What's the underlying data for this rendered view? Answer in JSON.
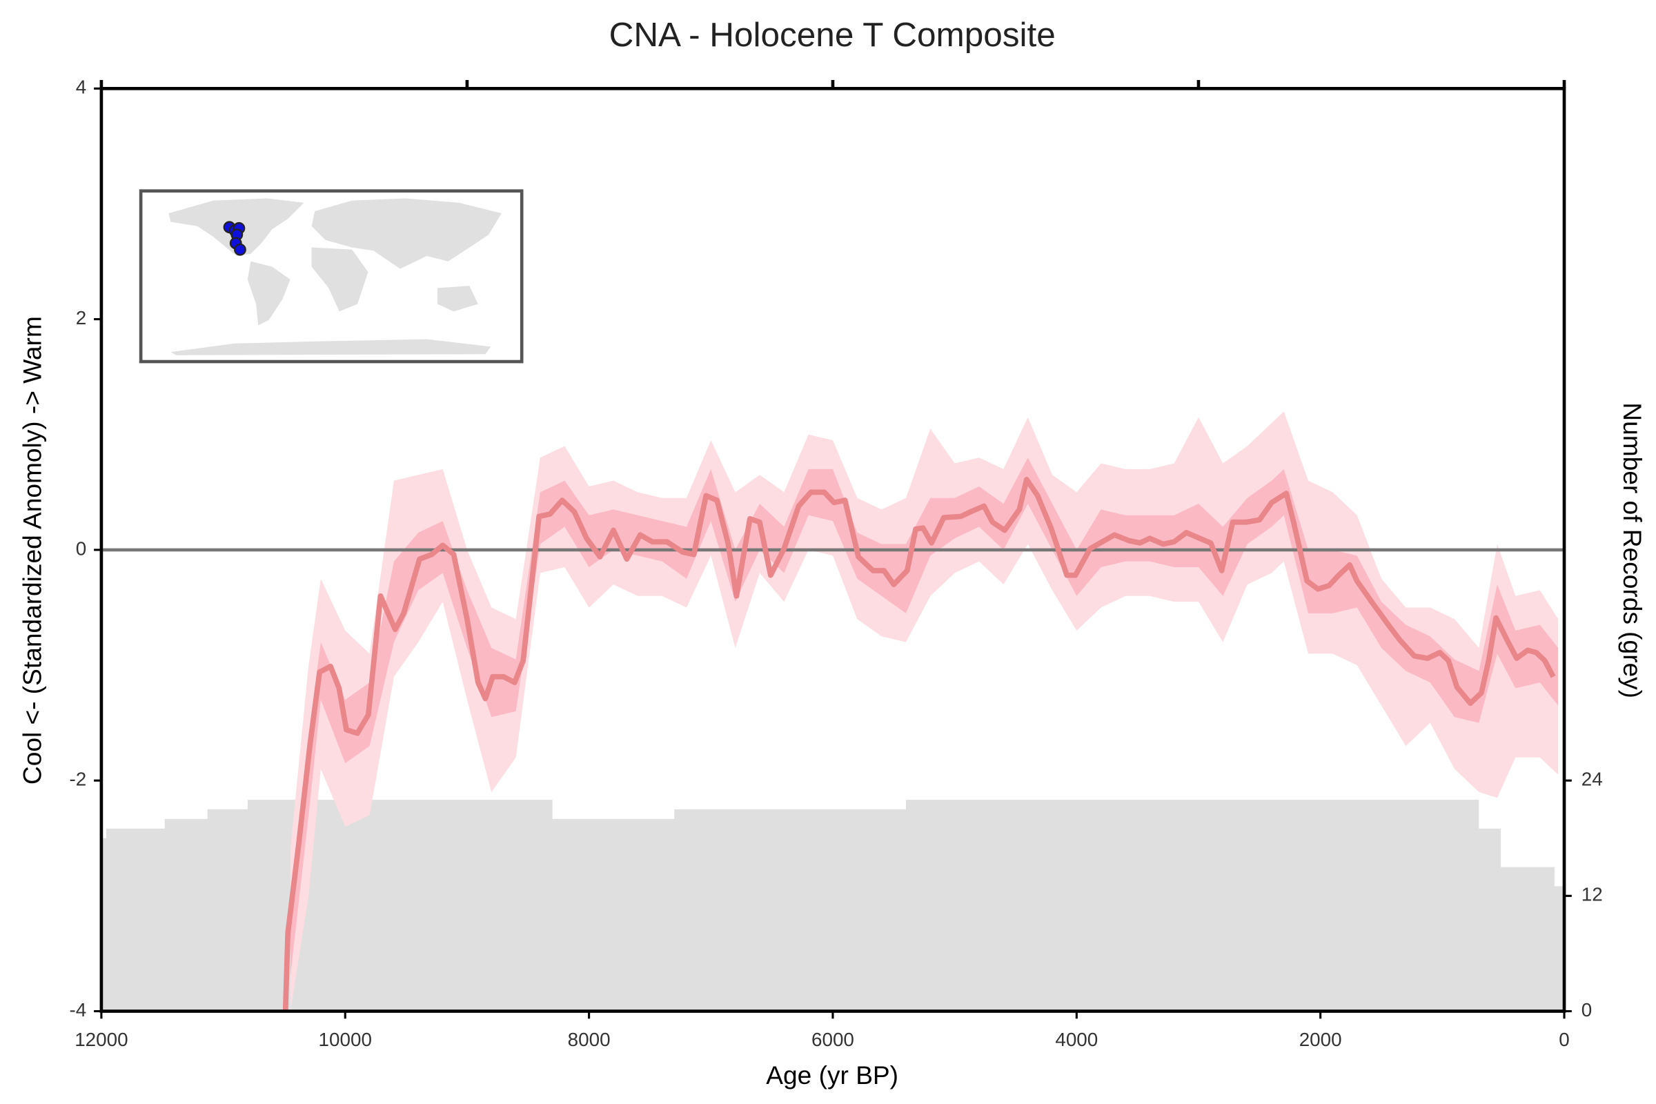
{
  "chart_data": {
    "type": "line",
    "title": "CNA - Holocene T Composite",
    "xlabel": "Age (yr BP)",
    "ylabel": "Cool <- (Standardized Anomoly) -> Warm",
    "y2label": "Number of Records (grey)",
    "xlim": [
      12000,
      0
    ],
    "xticks": [
      12000,
      10000,
      8000,
      6000,
      4000,
      2000,
      0
    ],
    "top_ticks": [
      12000,
      9000,
      6000,
      3000,
      0
    ],
    "ylim": [
      -4,
      4
    ],
    "yticks": [
      -4,
      -2,
      0,
      2,
      4
    ],
    "y2lim": [
      0,
      96
    ],
    "y2ticks": [
      0,
      12,
      24
    ],
    "hline": 0,
    "hline_color": "#777777",
    "records": {
      "color": "#dfdfdf",
      "axis": "y2",
      "x": [
        12000,
        11960,
        11480,
        11130,
        10800,
        8300,
        7300,
        5400,
        700,
        520,
        80
      ],
      "values": [
        18,
        19,
        20,
        21,
        22,
        20,
        21,
        22,
        19,
        15,
        13
      ]
    },
    "bands": [
      {
        "color": "#fddde2",
        "x": [
          10450,
          10300,
          10200,
          10000,
          9800,
          9600,
          9400,
          9200,
          9000,
          8800,
          8600,
          8400,
          8200,
          8000,
          7800,
          7600,
          7400,
          7200,
          7000,
          6800,
          6600,
          6400,
          6200,
          6000,
          5800,
          5600,
          5400,
          5200,
          5000,
          4800,
          4600,
          4400,
          4200,
          4000,
          3800,
          3600,
          3400,
          3200,
          3000,
          2800,
          2600,
          2400,
          2300,
          2100,
          1900,
          1700,
          1500,
          1300,
          1100,
          900,
          700,
          550,
          400,
          200,
          50
        ],
        "upper": [
          -2.6,
          -1.0,
          -0.25,
          -0.7,
          -0.9,
          0.6,
          0.65,
          0.7,
          0.0,
          -0.5,
          -0.6,
          0.8,
          0.9,
          0.55,
          0.6,
          0.5,
          0.45,
          0.45,
          0.95,
          0.5,
          0.65,
          0.5,
          1.0,
          0.95,
          0.45,
          0.35,
          0.45,
          1.05,
          0.75,
          0.8,
          0.7,
          1.15,
          0.65,
          0.5,
          0.75,
          0.7,
          0.7,
          0.75,
          1.15,
          0.75,
          0.9,
          1.1,
          1.2,
          0.6,
          0.5,
          0.3,
          -0.25,
          -0.5,
          -0.5,
          -0.6,
          -0.85,
          0.05,
          -0.4,
          -0.35,
          -0.6
        ],
        "lower": [
          -4,
          -3.0,
          -1.9,
          -2.4,
          -2.3,
          -1.1,
          -0.8,
          -0.45,
          -1.3,
          -2.1,
          -1.8,
          -0.2,
          -0.15,
          -0.5,
          -0.3,
          -0.4,
          -0.4,
          -0.5,
          -0.05,
          -0.85,
          -0.2,
          -0.45,
          0.0,
          -0.05,
          -0.6,
          -0.75,
          -0.8,
          -0.4,
          -0.2,
          -0.1,
          -0.3,
          0.05,
          -0.35,
          -0.7,
          -0.5,
          -0.4,
          -0.4,
          -0.45,
          -0.45,
          -0.8,
          -0.3,
          -0.2,
          -0.1,
          -0.9,
          -0.9,
          -1.0,
          -1.35,
          -1.7,
          -1.5,
          -1.9,
          -2.1,
          -2.15,
          -1.8,
          -1.8,
          -1.95
        ]
      },
      {
        "color": "#fbbac3",
        "x": [
          10450,
          10300,
          10200,
          10000,
          9800,
          9600,
          9400,
          9200,
          9000,
          8800,
          8600,
          8400,
          8200,
          8000,
          7800,
          7600,
          7400,
          7200,
          7000,
          6800,
          6600,
          6400,
          6200,
          6000,
          5800,
          5600,
          5400,
          5200,
          5000,
          4800,
          4600,
          4400,
          4200,
          4000,
          3800,
          3600,
          3400,
          3200,
          3000,
          2800,
          2600,
          2400,
          2300,
          2100,
          1900,
          1700,
          1500,
          1300,
          1100,
          900,
          700,
          550,
          400,
          200,
          50
        ],
        "upper": [
          -3.0,
          -1.6,
          -0.8,
          -1.3,
          -1.15,
          -0.1,
          0.15,
          0.25,
          -0.35,
          -0.85,
          -0.95,
          0.5,
          0.6,
          0.3,
          0.35,
          0.3,
          0.25,
          0.2,
          0.7,
          0.0,
          0.4,
          0.2,
          0.7,
          0.7,
          0.15,
          0.05,
          0.05,
          0.45,
          0.45,
          0.55,
          0.4,
          0.8,
          0.4,
          0.0,
          0.35,
          0.3,
          0.3,
          0.3,
          0.4,
          0.2,
          0.45,
          0.6,
          0.7,
          0.0,
          0.0,
          -0.05,
          -0.45,
          -0.65,
          -0.75,
          -0.95,
          -1.05,
          -0.3,
          -0.7,
          -0.65,
          -0.85
        ],
        "lower": [
          -3.7,
          -2.3,
          -1.3,
          -1.85,
          -1.7,
          -0.8,
          -0.35,
          -0.2,
          -0.85,
          -1.45,
          -1.4,
          0.05,
          0.2,
          -0.15,
          0.0,
          -0.05,
          -0.1,
          -0.25,
          0.25,
          -0.45,
          0.0,
          -0.2,
          0.3,
          0.25,
          -0.25,
          -0.4,
          -0.55,
          -0.05,
          0.1,
          0.2,
          0.0,
          0.4,
          0.0,
          -0.4,
          -0.15,
          -0.1,
          -0.1,
          -0.15,
          -0.15,
          -0.4,
          0.05,
          0.2,
          0.3,
          -0.55,
          -0.55,
          -0.5,
          -0.85,
          -1.05,
          -1.15,
          -1.45,
          -1.5,
          -0.9,
          -1.2,
          -1.15,
          -1.35
        ]
      }
    ],
    "median": {
      "color": "#e8868a",
      "x": [
        10490,
        10470,
        10380,
        10290,
        10210,
        10120,
        10050,
        9990,
        9900,
        9810,
        9710,
        9590,
        9520,
        9390,
        9290,
        9200,
        9110,
        9000,
        8910,
        8850,
        8790,
        8700,
        8610,
        8540,
        8410,
        8320,
        8220,
        8120,
        8020,
        7910,
        7800,
        7690,
        7580,
        7480,
        7360,
        7230,
        7140,
        7040,
        6950,
        6860,
        6790,
        6680,
        6600,
        6510,
        6400,
        6280,
        6180,
        6070,
        5990,
        5900,
        5790,
        5670,
        5580,
        5500,
        5390,
        5320,
        5260,
        5190,
        5090,
        4950,
        4870,
        4760,
        4690,
        4590,
        4470,
        4410,
        4320,
        4210,
        4080,
        4010,
        3890,
        3690,
        3570,
        3480,
        3400,
        3290,
        3200,
        3100,
        2990,
        2900,
        2810,
        2720,
        2610,
        2500,
        2400,
        2280,
        2220,
        2110,
        2020,
        1930,
        1850,
        1760,
        1700,
        1580,
        1450,
        1350,
        1230,
        1120,
        1020,
        950,
        880,
        770,
        680,
        620,
        560,
        470,
        390,
        300,
        230,
        160,
        90
      ],
      "values": [
        -4,
        -3.32,
        -2.54,
        -1.7,
        -1.06,
        -1.01,
        -1.2,
        -1.56,
        -1.59,
        -1.43,
        -0.4,
        -0.69,
        -0.55,
        -0.08,
        -0.04,
        0.04,
        -0.04,
        -0.6,
        -1.15,
        -1.29,
        -1.1,
        -1.1,
        -1.15,
        -0.96,
        0.29,
        0.31,
        0.43,
        0.33,
        0.1,
        -0.06,
        0.17,
        -0.08,
        0.13,
        0.07,
        0.07,
        -0.02,
        -0.04,
        0.47,
        0.43,
        0.06,
        -0.4,
        0.27,
        0.24,
        -0.22,
        0.01,
        0.38,
        0.5,
        0.5,
        0.41,
        0.43,
        -0.06,
        -0.18,
        -0.18,
        -0.3,
        -0.18,
        0.18,
        0.19,
        0.06,
        0.28,
        0.29,
        0.33,
        0.38,
        0.24,
        0.17,
        0.35,
        0.61,
        0.47,
        0.19,
        -0.22,
        -0.22,
        0.01,
        0.13,
        0.08,
        0.06,
        0.1,
        0.05,
        0.07,
        0.15,
        0.1,
        0.06,
        -0.18,
        0.24,
        0.24,
        0.26,
        0.41,
        0.49,
        0.24,
        -0.27,
        -0.34,
        -0.31,
        -0.22,
        -0.13,
        -0.27,
        -0.45,
        -0.64,
        -0.78,
        -0.92,
        -0.94,
        -0.89,
        -0.96,
        -1.19,
        -1.33,
        -1.24,
        -0.96,
        -0.59,
        -0.78,
        -0.94,
        -0.87,
        -0.89,
        -0.96,
        -1.1
      ]
    }
  }
}
